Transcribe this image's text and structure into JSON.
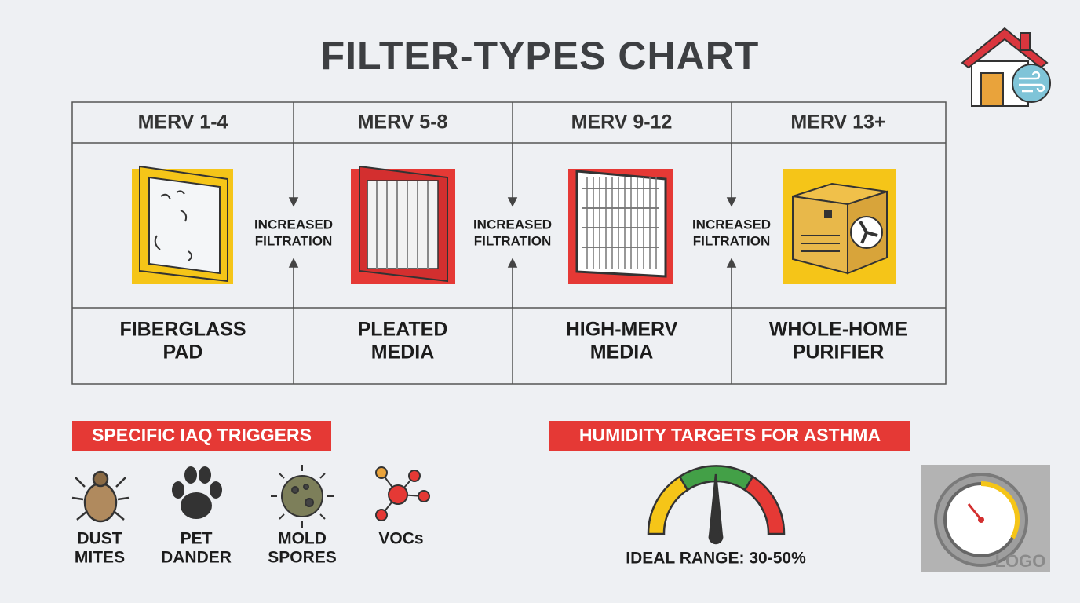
{
  "title": "FILTER-TYPES CHART",
  "columns": [
    {
      "merv": "MERV 1-4",
      "name": [
        "FIBERGLASS",
        "PAD"
      ]
    },
    {
      "merv": "MERV 5-8",
      "name": [
        "PLEATED",
        "MEDIA"
      ]
    },
    {
      "merv": "MERV 9-12",
      "name": [
        "HIGH-MERV",
        "MEDIA"
      ]
    },
    {
      "merv": "MERV 13+",
      "name": [
        "WHOLE-HOME",
        "PURIFIER"
      ]
    }
  ],
  "arrows": [
    [
      "INCREASED",
      "FILTRATION"
    ],
    [
      "INCREASED",
      "FILTRATION"
    ],
    [
      "INCREASED",
      "FILTRATION"
    ]
  ],
  "triggers": {
    "heading": "SPECIFIC IAQ TRIGGERS",
    "items": [
      [
        "DUST",
        "MITES"
      ],
      [
        "PET",
        "DANDER"
      ],
      [
        "MOLD",
        "SPORES"
      ],
      [
        "VOCs"
      ]
    ]
  },
  "humidity": {
    "heading": "HUMIDITY TARGETS FOR ASTHMA",
    "range": "IDEAL RANGE: 30-50%"
  },
  "logo": "LOGO"
}
